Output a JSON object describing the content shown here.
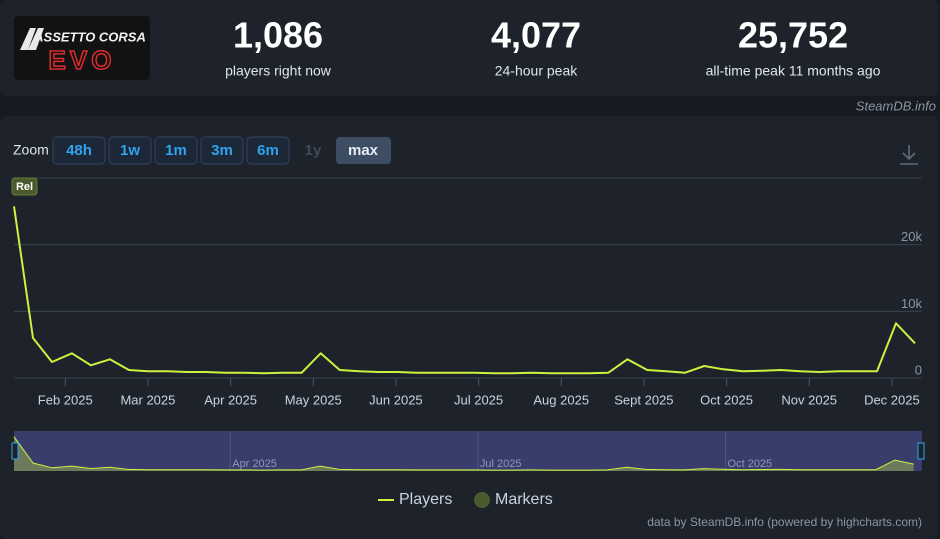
{
  "header": {
    "logo": {
      "line1": "ASSETTO CORSA",
      "line2": "EVO"
    },
    "stats": [
      {
        "value": "1,086",
        "label": "players right now"
      },
      {
        "value": "4,077",
        "label": "24-hour peak"
      },
      {
        "value": "25,752",
        "label": "all-time peak 11 months ago"
      }
    ],
    "source": "SteamDB.info"
  },
  "zoom": {
    "label": "Zoom",
    "buttons": [
      "48h",
      "1w",
      "1m",
      "3m",
      "6m",
      "1y",
      "max"
    ]
  },
  "chart_data": {
    "type": "line",
    "x": [
      0.38,
      0.61,
      0.84,
      1.08,
      1.31,
      1.54,
      1.77,
      2.0,
      2.24,
      2.47,
      2.7,
      2.93,
      3.16,
      3.4,
      3.63,
      3.86,
      4.09,
      4.32,
      4.56,
      4.79,
      5.02,
      5.25,
      5.48,
      5.72,
      5.95,
      6.18,
      6.41,
      6.64,
      6.88,
      7.11,
      7.34,
      7.57,
      7.8,
      8.04,
      8.27,
      8.5,
      8.73,
      8.96,
      9.2,
      9.43,
      9.66,
      9.89,
      10.12,
      10.36,
      10.59,
      10.82,
      11.05,
      11.28
    ],
    "series": [
      {
        "name": "Players",
        "color": "#cdf23e",
        "values": [
          25752,
          6000,
          2400,
          3700,
          1900,
          2800,
          1200,
          1000,
          1000,
          900,
          900,
          800,
          800,
          700,
          800,
          800,
          3700,
          1200,
          1000,
          900,
          900,
          800,
          800,
          800,
          800,
          700,
          700,
          800,
          700,
          700,
          700,
          800,
          2800,
          1200,
          1000,
          800,
          1800,
          1300,
          1000,
          1100,
          1200,
          1000,
          900,
          1000,
          1000,
          1000,
          8200,
          5200
        ]
      }
    ],
    "markers": {
      "name": "Markers",
      "color": "#4b5a2c"
    },
    "flags": [
      {
        "title": "Rel",
        "x": 0.38
      }
    ],
    "xlim": [
      0.38,
      11.34
    ],
    "xticks": [
      {
        "value": 1,
        "label": "Feb 2025"
      },
      {
        "value": 2,
        "label": "Mar 2025"
      },
      {
        "value": 3,
        "label": "Apr 2025"
      },
      {
        "value": 4,
        "label": "May 2025"
      },
      {
        "value": 5,
        "label": "Jun 2025"
      },
      {
        "value": 6,
        "label": "Jul 2025"
      },
      {
        "value": 7,
        "label": "Aug 2025"
      },
      {
        "value": 8,
        "label": "Sept 2025"
      },
      {
        "value": 9,
        "label": "Oct 2025"
      },
      {
        "value": 10,
        "label": "Nov 2025"
      },
      {
        "value": 11,
        "label": "Dec 2025"
      }
    ],
    "ylim": [
      0,
      30000
    ],
    "yticks": [
      0,
      {
        "value": 10000,
        "label": "10k"
      },
      {
        "value": 20000,
        "label": "20k"
      }
    ],
    "grid": true,
    "navigator": {
      "xlim": [
        0.38,
        11.38
      ],
      "xticks": [
        {
          "value": 3,
          "label": "Apr 2025"
        },
        {
          "value": 6,
          "label": "Jul 2025"
        },
        {
          "value": 9,
          "label": "Oct 2025"
        }
      ]
    },
    "credits": "data by SteamDB.info (powered by highcharts.com)"
  }
}
